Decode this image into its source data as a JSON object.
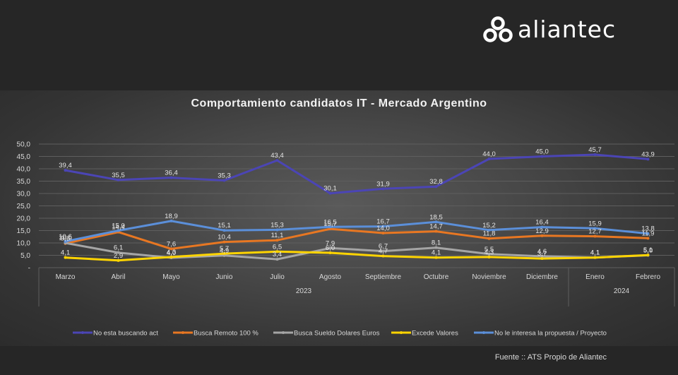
{
  "brand": {
    "name": "aliantec"
  },
  "colors": {
    "background": "#262626",
    "panel": "#474747",
    "grid": "#5e5e5e",
    "text": "#d9d9d9"
  },
  "footer": {
    "source": "Fuente :: ATS Propio de Aliantec"
  },
  "chart_data": {
    "type": "line",
    "title": "Comportamiento candidatos IT - Mercado Argentino",
    "categories": [
      "Marzo",
      "Abril",
      "Mayo",
      "Junio",
      "Julio",
      "Agosto",
      "Septiembre",
      "Octubre",
      "Noviembre",
      "Diciembre",
      "Enero",
      "Febrero"
    ],
    "year_groups": [
      {
        "label": "2023",
        "from": 0,
        "to": 9
      },
      {
        "label": "2024",
        "from": 10,
        "to": 11
      }
    ],
    "ylim": [
      0,
      50
    ],
    "yticks": [
      "-",
      "5,0",
      "10,0",
      "15,0",
      "20,0",
      "25,0",
      "30,0",
      "35,0",
      "40,0",
      "45,0",
      "50,0"
    ],
    "grid": true,
    "legend_position": "bottom",
    "series": [
      {
        "name": "No esta buscando act",
        "color": "#4b45b5",
        "values": [
          39.4,
          35.5,
          36.4,
          35.3,
          43.4,
          30.1,
          31.9,
          32.8,
          44.0,
          45.0,
          45.7,
          43.9
        ],
        "labels": [
          "39,4",
          "35,5",
          "36,4",
          "35,3",
          "43,4",
          "30,1",
          "31,9",
          "32,8",
          "44,0",
          "45,0",
          "45,7",
          "43,9"
        ]
      },
      {
        "name": "Busca Remoto 100 %",
        "color": "#e87722",
        "values": [
          9.8,
          14.4,
          7.6,
          10.4,
          11.1,
          15.7,
          14.0,
          14.7,
          11.8,
          12.9,
          12.7,
          11.9
        ],
        "labels": [
          "9,8",
          "14,4",
          "7,6",
          "10,4",
          "11,1",
          "15,7",
          "14,0",
          "14,7",
          "11,8",
          "12,9",
          "12,7",
          "11,9"
        ]
      },
      {
        "name": "Busca Sueldo Dolares Euros",
        "color": "#a5a5a5",
        "values": [
          10.0,
          6.1,
          4.0,
          4.9,
          3.4,
          7.9,
          6.7,
          8.1,
          5.5,
          4.6,
          4.1,
          5.0
        ],
        "labels": [
          "10,0",
          "6,1",
          "4,0",
          "4,9",
          "3,4",
          "7,9",
          "6,7",
          "8,1",
          "5,5",
          "4,6",
          "4,1",
          "5,0"
        ]
      },
      {
        "name": "Excede Valores",
        "color": "#ffd400",
        "values": [
          4.1,
          2.9,
          4.3,
          5.7,
          6.5,
          6.0,
          4.7,
          4.1,
          4.3,
          3.7,
          4.1,
          5.1
        ],
        "labels": [
          "4,1",
          "2,9",
          "4,3",
          "5,7",
          "6,5",
          "6,0",
          "4,7",
          "4,1",
          "4,3",
          "3,7",
          "4,1",
          "5,1"
        ]
      },
      {
        "name": "No le interesa la propuesta / Proyecto",
        "color": "#5b8fd9",
        "values": [
          10.6,
          15.0,
          18.9,
          15.1,
          15.3,
          16.5,
          16.7,
          18.5,
          15.2,
          16.4,
          15.9,
          13.8
        ],
        "labels": [
          "10,6",
          "15,0",
          "18,9",
          "15,1",
          "15,3",
          "16,5",
          "16,7",
          "18,5",
          "15,2",
          "16,4",
          "15,9",
          "13,8"
        ]
      }
    ]
  }
}
